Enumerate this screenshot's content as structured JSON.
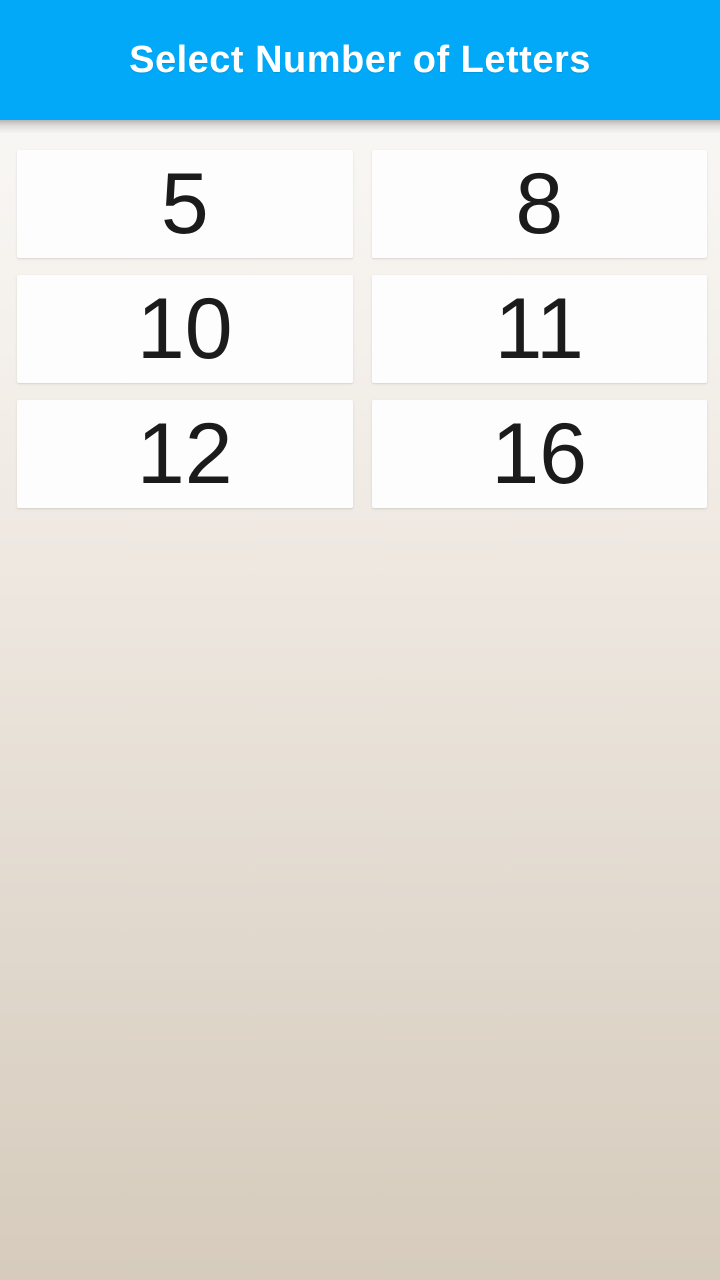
{
  "header": {
    "title": "Select Number of Letters"
  },
  "buttons": [
    {
      "label": "5"
    },
    {
      "label": "8"
    },
    {
      "label": "10"
    },
    {
      "label": "11"
    },
    {
      "label": "12"
    },
    {
      "label": "16"
    }
  ],
  "colors": {
    "title_bar_background": "#01a9f8",
    "title_text": "#ffffff",
    "button_background": "#fefdfd",
    "button_text": "#1b1b1b",
    "page_background_top": "#fbfaf9",
    "page_background_bottom": "#d6cbbc"
  }
}
